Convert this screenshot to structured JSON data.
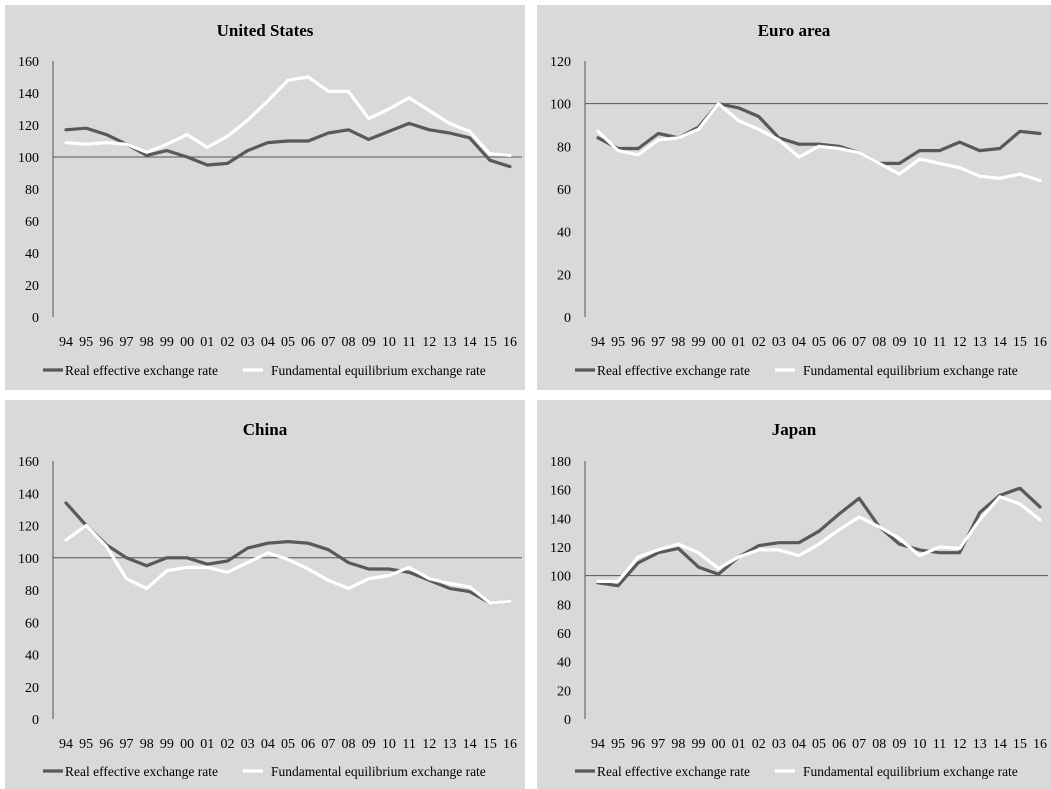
{
  "chart_data": [
    {
      "type": "line",
      "title": "United States",
      "x": [
        "94",
        "95",
        "96",
        "97",
        "98",
        "99",
        "00",
        "01",
        "02",
        "03",
        "04",
        "05",
        "06",
        "07",
        "08",
        "09",
        "10",
        "11",
        "12",
        "13",
        "14",
        "15",
        "16"
      ],
      "ylim": [
        0,
        160
      ],
      "yticks": [
        0,
        20,
        40,
        60,
        80,
        100,
        120,
        140,
        160
      ],
      "yticks_labels": [
        "0",
        "20",
        "40",
        "60",
        "80",
        "100",
        "120",
        "140",
        "160"
      ],
      "reference_line": 100,
      "legend": "bottom",
      "grid": false,
      "series": [
        {
          "name": "Real effective exchange rate",
          "color": "#595959",
          "values": [
            117,
            118,
            114,
            108,
            101,
            104,
            100,
            95,
            96,
            104,
            109,
            110,
            110,
            115,
            117,
            111,
            116,
            121,
            117,
            115,
            112,
            98,
            94
          ]
        },
        {
          "name": "Fundamental equilibrium exchange rate",
          "color": "#ffffff",
          "values": [
            109,
            108,
            109,
            108,
            103,
            108,
            114,
            106,
            113,
            123,
            135,
            148,
            150,
            141,
            141,
            124,
            130,
            137,
            129,
            121,
            116,
            102,
            101
          ]
        }
      ]
    },
    {
      "type": "line",
      "title": "Euro area",
      "x": [
        "94",
        "95",
        "96",
        "97",
        "98",
        "99",
        "00",
        "01",
        "02",
        "03",
        "04",
        "05",
        "06",
        "07",
        "08",
        "09",
        "10",
        "11",
        "12",
        "13",
        "14",
        "15",
        "16"
      ],
      "ylim": [
        0,
        120
      ],
      "yticks": [
        0,
        20,
        40,
        60,
        80,
        100,
        120
      ],
      "yticks_labels": [
        "0",
        "20",
        "40",
        "60",
        "80",
        "100",
        "120"
      ],
      "reference_line": 100,
      "legend": "bottom",
      "grid": false,
      "series": [
        {
          "name": "Real effective exchange rate",
          "color": "#595959",
          "values": [
            84,
            79,
            79,
            86,
            84,
            89,
            100,
            98,
            94,
            84,
            81,
            81,
            80,
            77,
            72,
            72,
            78,
            78,
            82,
            78,
            79,
            87,
            86
          ]
        },
        {
          "name": "Fundamental equilibrium exchange rate",
          "color": "#ffffff",
          "values": [
            87,
            78,
            76,
            83,
            84,
            88,
            100,
            92,
            88,
            83,
            75,
            80,
            79,
            77,
            72,
            67,
            74,
            72,
            70,
            66,
            65,
            67,
            64
          ]
        }
      ]
    },
    {
      "type": "line",
      "title": "China",
      "x": [
        "94",
        "95",
        "96",
        "97",
        "98",
        "99",
        "00",
        "01",
        "02",
        "03",
        "04",
        "05",
        "06",
        "07",
        "08",
        "09",
        "10",
        "11",
        "12",
        "13",
        "14",
        "15",
        "16"
      ],
      "ylim": [
        0,
        160
      ],
      "yticks": [
        0,
        20,
        40,
        60,
        80,
        100,
        120,
        140,
        160
      ],
      "yticks_labels": [
        "0",
        "20",
        "40",
        "60",
        "80",
        "100",
        "120",
        "140",
        "160"
      ],
      "reference_line": 100,
      "legend": "bottom",
      "grid": false,
      "series": [
        {
          "name": "Real effective exchange rate",
          "color": "#595959",
          "values": [
            134,
            120,
            108,
            100,
            95,
            100,
            100,
            96,
            98,
            106,
            109,
            110,
            109,
            105,
            97,
            93,
            93,
            91,
            86,
            81,
            79,
            72,
            73
          ]
        },
        {
          "name": "Fundamental equilibrium exchange rate",
          "color": "#ffffff",
          "values": [
            111,
            120,
            107,
            87,
            81,
            92,
            94,
            94,
            91,
            97,
            103,
            99,
            93,
            86,
            81,
            87,
            89,
            94,
            87,
            84,
            82,
            72,
            73
          ]
        }
      ]
    },
    {
      "type": "line",
      "title": "Japan",
      "x": [
        "94",
        "95",
        "96",
        "97",
        "98",
        "99",
        "00",
        "01",
        "02",
        "03",
        "04",
        "05",
        "06",
        "07",
        "08",
        "09",
        "10",
        "11",
        "12",
        "13",
        "14",
        "15",
        "16"
      ],
      "ylim": [
        0,
        180
      ],
      "yticks": [
        0,
        20,
        40,
        60,
        80,
        100,
        120,
        140,
        160,
        180
      ],
      "yticks_labels": [
        "0",
        "20",
        "40",
        "60",
        "80",
        "100",
        "120",
        "140",
        "160",
        "180"
      ],
      "reference_line": 100,
      "legend": "bottom",
      "grid": false,
      "series": [
        {
          "name": "Real effective exchange rate",
          "color": "#595959",
          "values": [
            95,
            93,
            109,
            116,
            119,
            106,
            101,
            113,
            121,
            123,
            123,
            131,
            143,
            154,
            134,
            122,
            118,
            116,
            116,
            144,
            156,
            161,
            148
          ]
        },
        {
          "name": "Fundamental equilibrium exchange rate",
          "color": "#ffffff",
          "values": [
            96,
            96,
            113,
            118,
            122,
            116,
            105,
            113,
            118,
            118,
            114,
            122,
            132,
            141,
            134,
            126,
            114,
            120,
            119,
            139,
            155,
            150,
            139
          ]
        }
      ]
    }
  ]
}
